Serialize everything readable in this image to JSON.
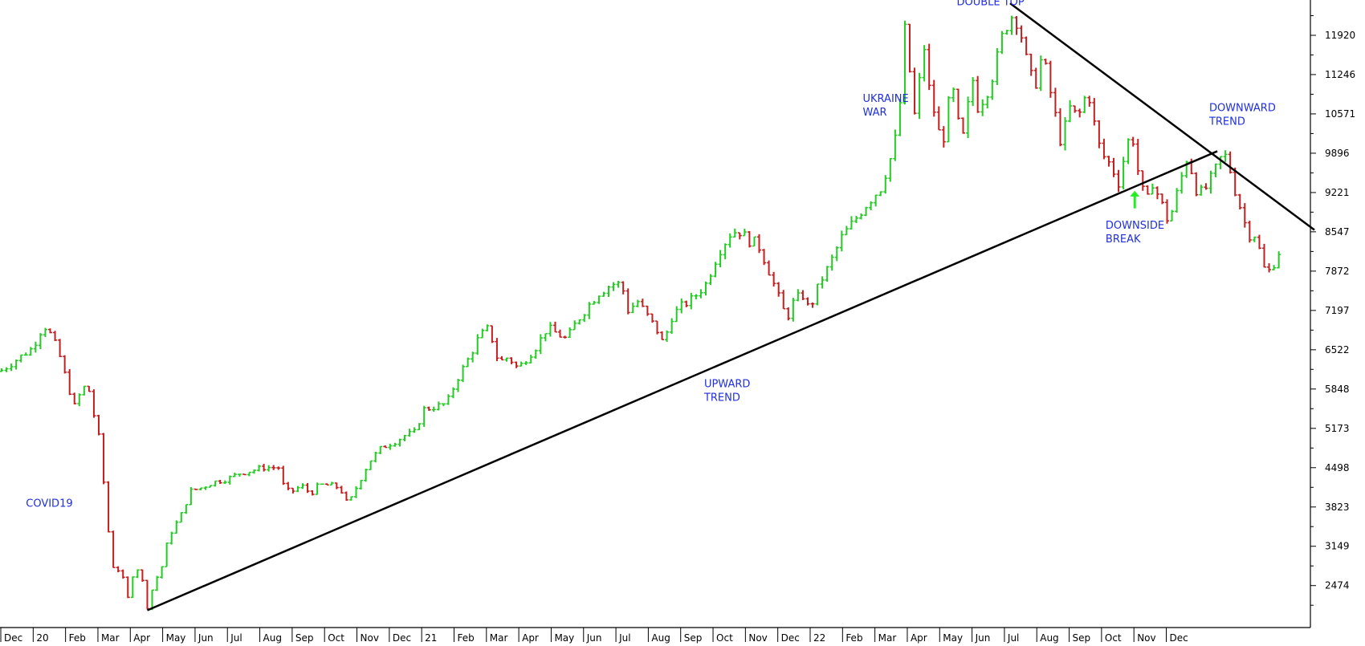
{
  "colors": {
    "background": "#ffffff",
    "up": "#22cc22",
    "down": "#c41e1e",
    "trendline": "#000000",
    "annotation": "#1f2fe0",
    "arrow": "#22ee22",
    "axis": "#000000"
  },
  "chart_data": {
    "type": "ohlc",
    "title": "",
    "y_axis_side": "right",
    "y_ticks": [
      2474,
      3149,
      3823,
      4498,
      5173,
      5848,
      6522,
      7197,
      7872,
      8547,
      9221,
      9896,
      10571,
      11246,
      11920
    ],
    "ylim": [
      1830,
      12570
    ],
    "x_labels": [
      "Dec",
      "20",
      "Feb",
      "Mar",
      "Apr",
      "May",
      "Jun",
      "Jul",
      "Aug",
      "Sep",
      "Oct",
      "Nov",
      "Dec",
      "21",
      "Feb",
      "Mar",
      "Apr",
      "May",
      "Jun",
      "Jul",
      "Aug",
      "Sep",
      "Oct",
      "Nov",
      "Dec",
      "22",
      "Feb",
      "Mar",
      "Apr",
      "May",
      "Jun",
      "Jul",
      "Aug",
      "Sep",
      "Oct",
      "Nov",
      "Dec"
    ],
    "price_path": [
      [
        0,
        6150
      ],
      [
        1,
        6550
      ],
      [
        1.35,
        6950
      ],
      [
        1.5,
        6850
      ],
      [
        1.8,
        6500
      ],
      [
        2.1,
        5900
      ],
      [
        2.3,
        5550
      ],
      [
        2.5,
        5800
      ],
      [
        2.7,
        5950
      ],
      [
        2.9,
        5400
      ],
      [
        3.1,
        4900
      ],
      [
        3.3,
        3600
      ],
      [
        3.5,
        2800
      ],
      [
        3.75,
        2700
      ],
      [
        4.0,
        2150
      ],
      [
        4.15,
        2900
      ],
      [
        4.4,
        2550
      ],
      [
        4.55,
        2100
      ],
      [
        4.75,
        2500
      ],
      [
        5.0,
        2800
      ],
      [
        5.2,
        3300
      ],
      [
        5.6,
        3700
      ],
      [
        5.9,
        4100
      ],
      [
        6.2,
        4150
      ],
      [
        6.6,
        4250
      ],
      [
        7.0,
        4300
      ],
      [
        7.4,
        4400
      ],
      [
        7.8,
        4450
      ],
      [
        8.1,
        4500
      ],
      [
        8.6,
        4500
      ],
      [
        8.8,
        4100
      ],
      [
        9.1,
        4100
      ],
      [
        9.3,
        4200
      ],
      [
        9.6,
        4050
      ],
      [
        9.85,
        4200
      ],
      [
        10.2,
        4200
      ],
      [
        10.5,
        4150
      ],
      [
        10.75,
        3850
      ],
      [
        11.0,
        4150
      ],
      [
        11.4,
        4600
      ],
      [
        11.8,
        4850
      ],
      [
        12.2,
        4950
      ],
      [
        12.5,
        5050
      ],
      [
        12.8,
        5100
      ],
      [
        13.1,
        5500
      ],
      [
        13.5,
        5550
      ],
      [
        13.8,
        5600
      ],
      [
        14.1,
        6000
      ],
      [
        14.5,
        6400
      ],
      [
        14.8,
        6750
      ],
      [
        15.1,
        6900
      ],
      [
        15.4,
        6300
      ],
      [
        15.7,
        6400
      ],
      [
        16.0,
        6200
      ],
      [
        16.3,
        6400
      ],
      [
        16.6,
        6600
      ],
      [
        16.9,
        6900
      ],
      [
        17.2,
        6800
      ],
      [
        17.5,
        6700
      ],
      [
        17.8,
        7000
      ],
      [
        18.2,
        7300
      ],
      [
        18.5,
        7500
      ],
      [
        18.9,
        7650
      ],
      [
        19.2,
        7650
      ],
      [
        19.4,
        7200
      ],
      [
        19.7,
        7350
      ],
      [
        20.0,
        7100
      ],
      [
        20.3,
        6850
      ],
      [
        20.5,
        6600
      ],
      [
        20.7,
        7050
      ],
      [
        21.0,
        7250
      ],
      [
        21.4,
        7400
      ],
      [
        21.8,
        7650
      ],
      [
        22.2,
        8200
      ],
      [
        22.6,
        8550
      ],
      [
        22.9,
        8550
      ],
      [
        23.1,
        8400
      ],
      [
        23.4,
        8350
      ],
      [
        23.7,
        7950
      ],
      [
        24.0,
        7500
      ],
      [
        24.3,
        7050
      ],
      [
        24.55,
        7400
      ],
      [
        24.8,
        7450
      ],
      [
        25.0,
        7200
      ],
      [
        25.3,
        7650
      ],
      [
        25.6,
        7950
      ],
      [
        26.0,
        8450
      ],
      [
        26.4,
        8750
      ],
      [
        26.8,
        9050
      ],
      [
        27.2,
        9300
      ],
      [
        27.5,
        9800
      ],
      [
        27.75,
        10350
      ],
      [
        27.95,
        12000
      ],
      [
        28.1,
        11300
      ],
      [
        28.3,
        10300
      ],
      [
        28.5,
        11950
      ],
      [
        28.7,
        11000
      ],
      [
        28.9,
        10500
      ],
      [
        29.1,
        10000
      ],
      [
        29.4,
        11100
      ],
      [
        29.6,
        10400
      ],
      [
        29.8,
        10100
      ],
      [
        30.0,
        11300
      ],
      [
        30.2,
        10700
      ],
      [
        30.45,
        10900
      ],
      [
        30.7,
        11300
      ],
      [
        31.0,
        12000
      ],
      [
        31.3,
        12300
      ],
      [
        31.5,
        12050
      ],
      [
        31.7,
        11500
      ],
      [
        31.95,
        11000
      ],
      [
        32.2,
        11600
      ],
      [
        32.5,
        10800
      ],
      [
        32.8,
        10000
      ],
      [
        33.0,
        10700
      ],
      [
        33.3,
        10500
      ],
      [
        33.6,
        11000
      ],
      [
        33.8,
        10400
      ],
      [
        34.0,
        9900
      ],
      [
        34.3,
        9700
      ],
      [
        34.55,
        9400
      ],
      [
        34.75,
        9900
      ],
      [
        34.95,
        10300
      ],
      [
        35.15,
        9600
      ],
      [
        35.4,
        9000
      ],
      [
        35.6,
        9400
      ],
      [
        35.9,
        9000
      ],
      [
        36.1,
        8700
      ],
      [
        36.3,
        9100
      ],
      [
        36.5,
        9500
      ],
      [
        36.7,
        9900
      ],
      [
        36.9,
        9300
      ],
      [
        37.15,
        9200
      ],
      [
        37.45,
        9500
      ],
      [
        37.7,
        9800
      ],
      [
        37.9,
        9850
      ],
      [
        38.1,
        9350
      ],
      [
        38.35,
        8900
      ],
      [
        38.55,
        8500
      ],
      [
        38.75,
        8500
      ],
      [
        38.95,
        8150
      ],
      [
        39.1,
        7800
      ],
      [
        39.3,
        7950
      ],
      [
        39.5,
        8200
      ]
    ],
    "trendlines": [
      {
        "name": "upward-trend-line",
        "from": [
          4.55,
          2050
        ],
        "to": [
          37.6,
          9930
        ]
      },
      {
        "name": "downward-trend-line",
        "from": [
          31.2,
          12470
        ],
        "to": [
          40.6,
          8580
        ]
      }
    ],
    "annotations": [
      {
        "key": "covid19",
        "lines": [
          "COVID19"
        ],
        "x": 0.8,
        "y": 3830
      },
      {
        "key": "upward_trend",
        "lines": [
          "UPWARD",
          "TREND"
        ],
        "x": 21.75,
        "y": 5880
      },
      {
        "key": "ukraine_war",
        "lines": [
          "UKRAINE",
          "WAR"
        ],
        "x": 26.65,
        "y": 10780
      },
      {
        "key": "double_top",
        "lines": [
          "DOUBLE TOP"
        ],
        "x": 29.55,
        "y": 12440
      },
      {
        "key": "downside_break",
        "lines": [
          "DOWNSIDE",
          "BREAK"
        ],
        "x": 34.15,
        "y": 8600
      },
      {
        "key": "downward_trend",
        "lines": [
          "DOWNWARD",
          "TREND"
        ],
        "x": 37.35,
        "y": 10620
      }
    ],
    "arrow": {
      "name": "downside-break-arrow",
      "x": 35.05,
      "y_tip": 9250,
      "y_tail": 8950
    }
  }
}
